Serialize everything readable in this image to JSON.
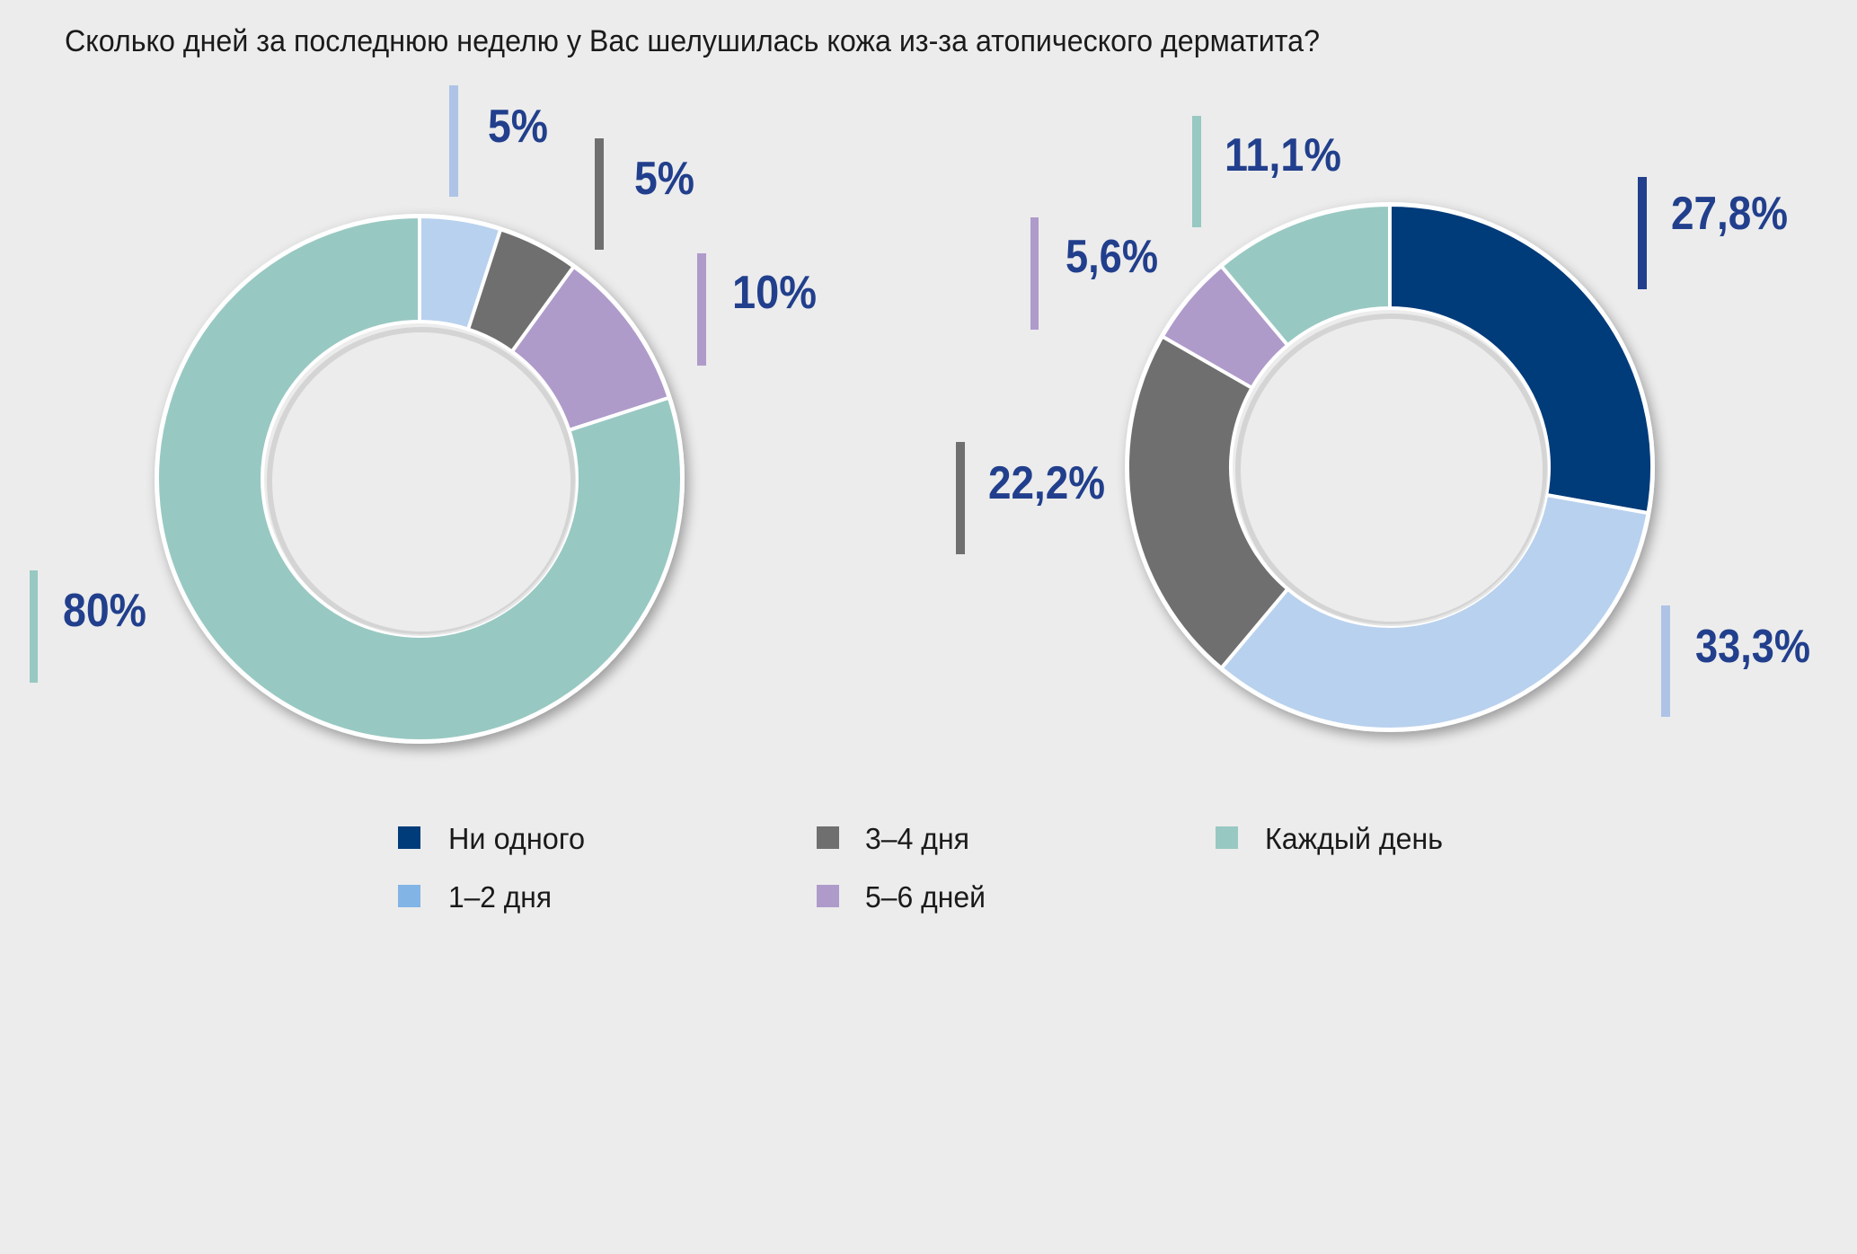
{
  "title": "Сколько дней за последнюю неделю у Вас шелушилась кожа из-за атопического дерматита?",
  "colors": {
    "background": "#ececec",
    "label_text": "#213f8c",
    "none": "#003b7a",
    "one_two": "#b8d1ee",
    "one_two_legend": "#82b4e6",
    "one_two_bar": "#aec3e6",
    "three_four": "#6f6f6f",
    "five_six": "#ae9bca",
    "every_day": "#98c8c2"
  },
  "legend": [
    {
      "label": "Ни одного",
      "color": "#003b7a"
    },
    {
      "label": "3–4 дня",
      "color": "#6f6f6f"
    },
    {
      "label": "Каждый день",
      "color": "#98c8c2"
    },
    {
      "label": "1–2 дня",
      "color": "#82b4e6"
    },
    {
      "label": "5–6 дней",
      "color": "#ae9bca"
    }
  ],
  "chart_data": [
    {
      "type": "pie",
      "variant": "donut",
      "title": "Сколько дней за последнюю неделю у Вас шелушилась кожа из-за атопического дерматита?",
      "categories": [
        "Ни одного",
        "1–2 дня",
        "3–4 дня",
        "5–6 дней",
        "Каждый день"
      ],
      "values": [
        0,
        5,
        5,
        10,
        80
      ],
      "labels": [
        "",
        "5%",
        "5%",
        "10%",
        "80%"
      ],
      "colors": [
        "#003b7a",
        "#b8d1ee",
        "#6f6f6f",
        "#ae9bca",
        "#98c8c2"
      ],
      "start": "top",
      "direction": "clockwise"
    },
    {
      "type": "pie",
      "variant": "donut",
      "title": "Сколько дней за последнюю неделю у Вас шелушилась кожа из-за атопического дерматита?",
      "categories": [
        "Ни одного",
        "1–2 дня",
        "3–4 дня",
        "5–6 дней",
        "Каждый день"
      ],
      "values": [
        27.8,
        33.3,
        22.2,
        5.6,
        11.1
      ],
      "labels": [
        "27,8%",
        "33,3%",
        "22,2%",
        "5,6%",
        "11,1%"
      ],
      "colors": [
        "#003b7a",
        "#b8d1ee",
        "#6f6f6f",
        "#ae9bca",
        "#98c8c2"
      ],
      "start": "top",
      "direction": "clockwise"
    }
  ]
}
